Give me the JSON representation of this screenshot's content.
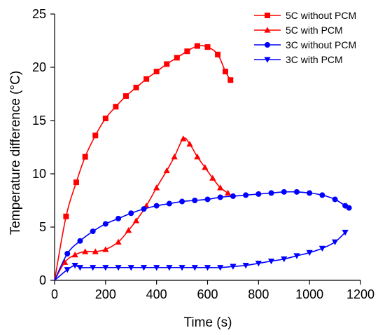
{
  "chart_data": {
    "type": "line",
    "title": "",
    "xlabel": "Time (s)",
    "ylabel": "Temperature difference (°C)",
    "xlim": [
      0,
      1200
    ],
    "ylim": [
      0,
      25
    ],
    "xticks": [
      "0",
      "200",
      "400",
      "600",
      "800",
      "1000",
      "1200"
    ],
    "yticks": [
      "0",
      "5",
      "10",
      "15",
      "20",
      "25"
    ],
    "grid": false,
    "legend_position": "top-right",
    "series": [
      {
        "name": "5C without PCM",
        "color": "#ff0000",
        "marker": "square",
        "x": [
          0,
          45,
          85,
          120,
          160,
          200,
          240,
          280,
          320,
          360,
          400,
          440,
          480,
          520,
          560,
          600,
          640,
          670,
          690
        ],
        "y": [
          0,
          6.0,
          9.2,
          11.6,
          13.6,
          15.2,
          16.3,
          17.3,
          18.1,
          18.9,
          19.6,
          20.3,
          20.9,
          21.5,
          22.0,
          21.9,
          21.2,
          19.6,
          18.8
        ]
      },
      {
        "name": "5C with PCM",
        "color": "#ff0000",
        "marker": "triangle-up",
        "x": [
          0,
          40,
          80,
          120,
          160,
          200,
          250,
          290,
          320,
          360,
          400,
          440,
          470,
          505,
          530,
          560,
          590,
          620,
          650,
          680
        ],
        "y": [
          0,
          1.7,
          2.4,
          2.7,
          2.7,
          2.9,
          3.6,
          4.7,
          5.6,
          7.0,
          8.7,
          10.3,
          11.6,
          13.3,
          12.8,
          11.6,
          10.6,
          9.6,
          8.7,
          8.2
        ]
      },
      {
        "name": "3C without PCM",
        "color": "#0000ff",
        "marker": "circle",
        "x": [
          0,
          50,
          100,
          150,
          200,
          250,
          300,
          350,
          400,
          450,
          500,
          550,
          600,
          650,
          700,
          750,
          800,
          850,
          900,
          950,
          1000,
          1050,
          1100,
          1140,
          1155
        ],
        "y": [
          0,
          2.5,
          3.7,
          4.6,
          5.3,
          5.8,
          6.3,
          6.7,
          7.0,
          7.2,
          7.4,
          7.5,
          7.6,
          7.8,
          7.9,
          8.0,
          8.1,
          8.2,
          8.3,
          8.3,
          8.2,
          8.0,
          7.6,
          7.0,
          6.8
        ]
      },
      {
        "name": "3C with PCM",
        "color": "#0000ff",
        "marker": "triangle-down",
        "x": [
          0,
          50,
          80,
          100,
          150,
          200,
          250,
          300,
          350,
          400,
          450,
          500,
          550,
          600,
          650,
          700,
          750,
          800,
          850,
          900,
          950,
          1000,
          1050,
          1100,
          1140
        ],
        "y": [
          0,
          1.0,
          1.4,
          1.2,
          1.2,
          1.2,
          1.2,
          1.2,
          1.2,
          1.2,
          1.2,
          1.2,
          1.2,
          1.2,
          1.2,
          1.3,
          1.4,
          1.6,
          1.8,
          2.0,
          2.3,
          2.6,
          3.0,
          3.6,
          4.5
        ]
      }
    ]
  }
}
